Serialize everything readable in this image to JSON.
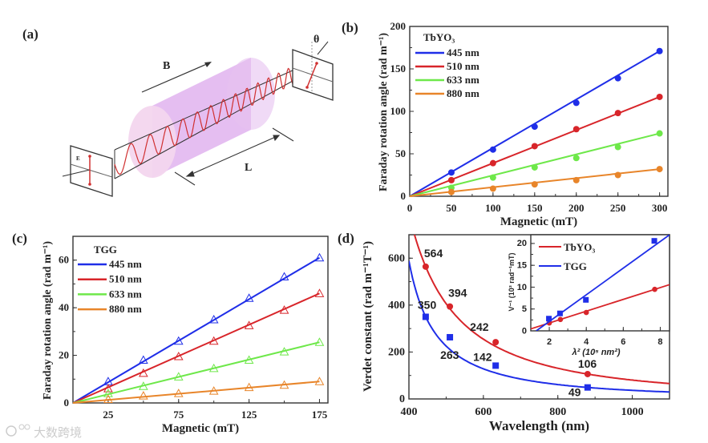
{
  "figure": {
    "panel_a": {
      "label": "(a)",
      "field_label": "B",
      "length_label": "L",
      "angle_label": "θ",
      "efield_label": "E"
    },
    "watermark": "大数跨境"
  },
  "colors": {
    "blue": "#1f2ee8",
    "red": "#d8252a",
    "green": "#6ee84a",
    "orange": "#e8852a"
  },
  "chart_data": [
    {
      "panel": "(b)",
      "type": "line",
      "marker": "circle-filled",
      "legend_title": "TbYO₃",
      "legend_placement": "top-left",
      "xlabel": "Magnetic (mT)",
      "ylabel": "Faraday rotation angle (rad m⁻¹)",
      "xlim": [
        0,
        310
      ],
      "ylim": [
        0,
        200
      ],
      "xticks": [
        0,
        50,
        100,
        150,
        200,
        250,
        300
      ],
      "xminor": 25,
      "yticks": [
        0,
        50,
        100,
        150,
        200
      ],
      "yminor": 25,
      "x": [
        50,
        100,
        150,
        200,
        250,
        300
      ],
      "series": [
        {
          "name": "445 nm",
          "color": "#1f2ee8",
          "values": [
            28,
            55,
            82,
            110,
            139,
            171
          ]
        },
        {
          "name": "510 nm",
          "color": "#d8252a",
          "values": [
            19,
            39,
            59,
            79,
            98,
            117
          ]
        },
        {
          "name": "633 nm",
          "color": "#6ee84a",
          "values": [
            10,
            22,
            34,
            45,
            58,
            74
          ]
        },
        {
          "name": "880 nm",
          "color": "#e8852a",
          "values": [
            5,
            9,
            14,
            19,
            25,
            32
          ]
        }
      ]
    },
    {
      "panel": "(c)",
      "type": "line",
      "marker": "triangle-open",
      "legend_title": "TGG",
      "legend_placement": "top-left",
      "xlabel": "Magnetic (mT)",
      "ylabel": "Faraday rotation angle (rad m⁻¹)",
      "xlim": [
        0,
        181
      ],
      "ylim": [
        0,
        70
      ],
      "xticks": [
        25,
        75,
        125,
        175
      ],
      "xminor": 25,
      "yticks": [
        0,
        20,
        40,
        60
      ],
      "yminor": 10,
      "x": [
        25,
        50,
        75,
        100,
        125,
        150,
        175
      ],
      "series": [
        {
          "name": "445 nm",
          "color": "#1f2ee8",
          "values": [
            9,
            18,
            26,
            35,
            44,
            53,
            61
          ]
        },
        {
          "name": "510 nm",
          "color": "#d8252a",
          "values": [
            6,
            12.5,
            19.5,
            26,
            32.5,
            39,
            46
          ]
        },
        {
          "name": "633 nm",
          "color": "#6ee84a",
          "values": [
            4,
            7,
            11,
            14.5,
            18,
            21.5,
            25.5
          ]
        },
        {
          "name": "880 nm",
          "color": "#e8852a",
          "values": [
            1.5,
            3,
            4,
            5,
            6.5,
            7.5,
            9
          ]
        }
      ]
    },
    {
      "panel": "(d)",
      "type": "scatter",
      "xlabel": "Wavelength (nm)",
      "ylabel": "Verdet constant (rad m⁻¹T⁻¹)",
      "xlim": [
        400,
        1100
      ],
      "ylim": [
        0,
        700
      ],
      "xticks": [
        400,
        600,
        800,
        1000
      ],
      "xminor": 100,
      "yticks": [
        0,
        200,
        400,
        600
      ],
      "yminor": 100,
      "x": [
        445,
        510,
        633,
        880
      ],
      "series": [
        {
          "name": "TbYO₃",
          "color": "#d8252a",
          "marker": "circle",
          "values": [
            564,
            394,
            242,
            106
          ],
          "labels": [
            "564",
            "394",
            "242",
            "106"
          ],
          "fit": {
            "a": 75236000,
            "b": 64628
          }
        },
        {
          "name": "TGG",
          "color": "#1f2ee8",
          "marker": "square",
          "values": [
            350,
            263,
            142,
            49
          ],
          "labels": [
            "350",
            "263",
            "142",
            "49"
          ],
          "fit": {
            "a": 32840000,
            "b": 104197
          }
        }
      ],
      "inset": {
        "xlabel": "λ² (10⁵ nm²)",
        "ylabel": "V⁻¹ (10³ rad⁻¹mT)",
        "legend_placement": "top-left",
        "xlim": [
          1.0,
          8.5
        ],
        "ylim": [
          0,
          22
        ],
        "xticks": [
          2,
          4,
          6,
          8
        ],
        "xminor": 1,
        "yticks": [
          0,
          5,
          10,
          15,
          20
        ],
        "yminor": 2.5,
        "series": [
          {
            "name": "TbYO₃",
            "color": "#d8252a",
            "marker": "circle",
            "x": [
              2,
              2.6,
              4,
              7.7
            ],
            "values": [
              1.8,
              2.6,
              4.2,
              9.5
            ],
            "line": {
              "slope": 1.35,
              "intercept": -0.9
            }
          },
          {
            "name": "TGG",
            "color": "#1f2ee8",
            "marker": "square",
            "x": [
              2,
              2.6,
              4,
              7.7
            ],
            "values": [
              2.7,
              3.9,
              7.0,
              20.5
            ],
            "line": {
              "slope": 3.05,
              "intercept": -3.95
            }
          }
        ]
      }
    }
  ]
}
